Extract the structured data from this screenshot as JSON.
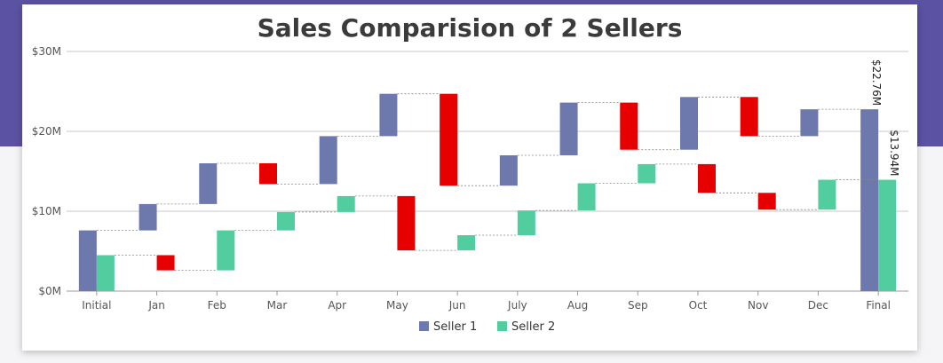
{
  "chart_data": {
    "type": "bar",
    "subtype": "waterfall",
    "title": "Sales Comparision of 2 Sellers",
    "categories": [
      "Initial",
      "Jan",
      "Feb",
      "Mar",
      "Apr",
      "May",
      "Jun",
      "July",
      "Aug",
      "Sep",
      "Oct",
      "Nov",
      "Dec",
      "Final"
    ],
    "ylim": [
      0,
      30
    ],
    "yticks": [
      0,
      10,
      20,
      30
    ],
    "ytick_labels": [
      "$0M",
      "$10M",
      "$20M",
      "$30M"
    ],
    "grid": true,
    "legend_position": "bottom",
    "series": [
      {
        "name": "Seller 1",
        "color": "#6d78ad",
        "negative_color": "#e60000",
        "steps": [
          {
            "low": 0,
            "high": 7.6
          },
          {
            "low": 7.6,
            "high": 10.9
          },
          {
            "low": 10.9,
            "high": 16.0
          },
          {
            "low": 13.4,
            "high": 16.0
          },
          {
            "low": 13.4,
            "high": 19.4
          },
          {
            "low": 19.4,
            "high": 24.7
          },
          {
            "low": 13.2,
            "high": 24.7
          },
          {
            "low": 13.2,
            "high": 17.0
          },
          {
            "low": 17.0,
            "high": 23.6
          },
          {
            "low": 17.7,
            "high": 23.6
          },
          {
            "low": 17.7,
            "high": 24.3
          },
          {
            "low": 19.4,
            "high": 24.3
          },
          {
            "low": 19.4,
            "high": 22.76
          },
          {
            "low": 0,
            "high": 22.76
          }
        ],
        "negative_indices": [
          3,
          6,
          9,
          11
        ],
        "final_label": "$22.76M"
      },
      {
        "name": "Seller 2",
        "color": "#51cda0",
        "negative_color": "#e60000",
        "steps": [
          {
            "low": 0,
            "high": 4.5
          },
          {
            "low": 2.6,
            "high": 4.5
          },
          {
            "low": 2.6,
            "high": 7.6
          },
          {
            "low": 7.6,
            "high": 9.9
          },
          {
            "low": 9.9,
            "high": 11.9
          },
          {
            "low": 5.1,
            "high": 11.9
          },
          {
            "low": 5.1,
            "high": 7.0
          },
          {
            "low": 7.0,
            "high": 10.1
          },
          {
            "low": 10.1,
            "high": 13.5
          },
          {
            "low": 13.5,
            "high": 15.9
          },
          {
            "low": 12.3,
            "high": 15.9
          },
          {
            "low": 10.2,
            "high": 12.3
          },
          {
            "low": 10.2,
            "high": 13.94
          },
          {
            "low": 0,
            "high": 13.94
          }
        ],
        "negative_indices": [
          1,
          5,
          10,
          11
        ],
        "final_label": "$13.94M"
      }
    ]
  }
}
